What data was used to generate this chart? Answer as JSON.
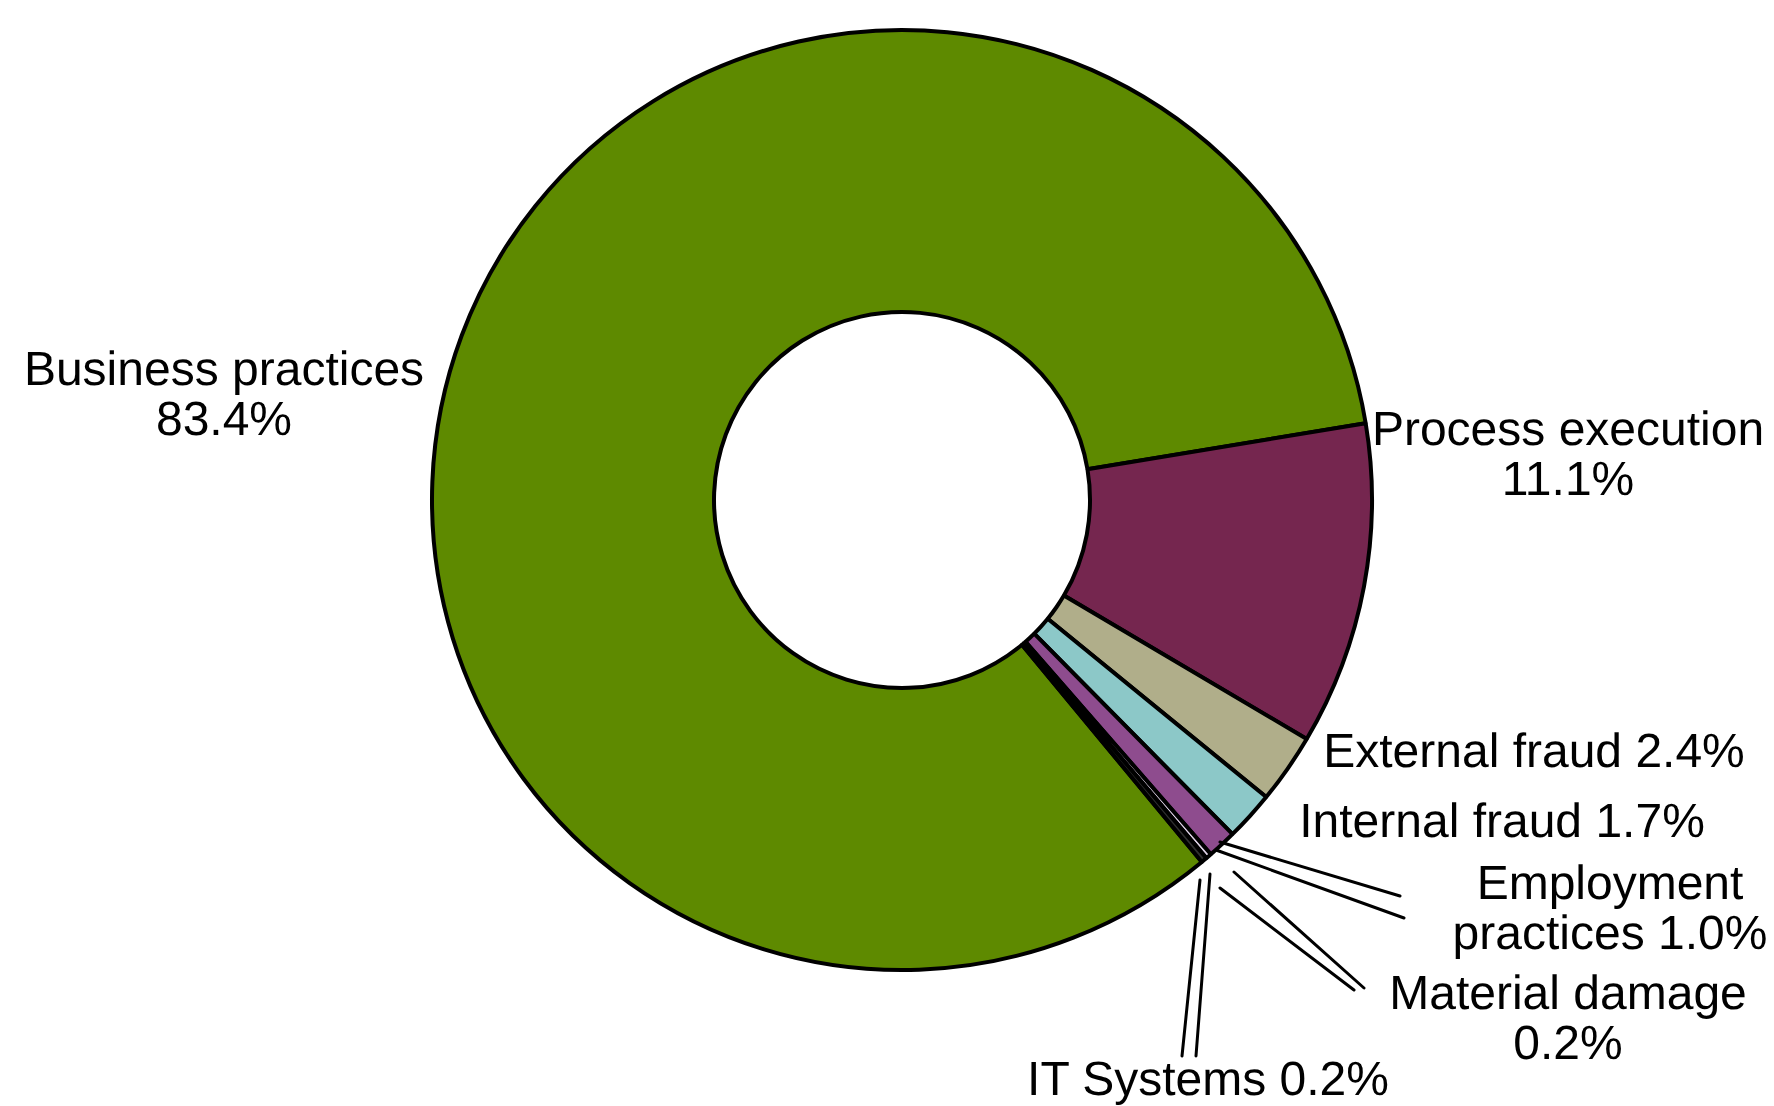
{
  "chart_data": {
    "type": "donut",
    "categories": [
      "Business practices",
      "Process execution",
      "External fraud",
      "Internal fraud",
      "Employment practices",
      "Material damage",
      "IT Systems"
    ],
    "values": [
      83.4,
      11.1,
      2.4,
      1.7,
      1.0,
      0.2,
      0.2
    ],
    "value_labels": [
      "83.4%",
      "11.1%",
      "2.4%",
      "1.7%",
      "1.0%",
      "0.2%",
      "0.2%"
    ],
    "colors": [
      "#5e8a00",
      "#75264f",
      "#b0ae8a",
      "#8cc8c8",
      "#8e4c8e",
      "#e0d4e8",
      "#303030"
    ],
    "legend": false
  }
}
